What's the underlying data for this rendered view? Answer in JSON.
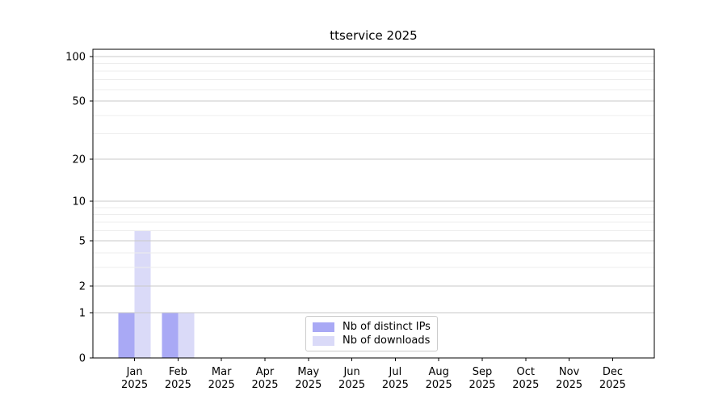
{
  "chart_data": {
    "type": "bar",
    "title": "ttservice 2025",
    "categories": [
      "Jan 2025",
      "Feb 2025",
      "Mar 2025",
      "Apr 2025",
      "May 2025",
      "Jun 2025",
      "Jul 2025",
      "Aug 2025",
      "Sep 2025",
      "Oct 2025",
      "Nov 2025",
      "Dec 2025"
    ],
    "series": [
      {
        "key": "distinct-ips",
        "name": "Nb of distinct IPs",
        "color": "#a9a9f5",
        "values": [
          1,
          1,
          0,
          0,
          0,
          0,
          0,
          0,
          0,
          0,
          0,
          0
        ]
      },
      {
        "key": "downloads",
        "name": "Nb of downloads",
        "color": "#dadaf8",
        "values": [
          6,
          1,
          0,
          0,
          0,
          0,
          0,
          0,
          0,
          0,
          0,
          0
        ]
      }
    ],
    "xlabel": "",
    "ylabel": "",
    "yscale": "log1p",
    "ylim": [
      0,
      112
    ],
    "yticks": [
      0,
      1,
      2,
      5,
      10,
      20,
      50,
      100
    ],
    "minor_gridlines": [
      3,
      4,
      6,
      7,
      8,
      9,
      30,
      40,
      60,
      70,
      80,
      90
    ],
    "grid": "horizontal",
    "legend_position": "inside-bottom-center",
    "colors": {
      "axis_text": "#000000",
      "spine": "#000000",
      "grid_major": "#c9c9c9",
      "grid_minor": "#ededed",
      "background": "#ffffff"
    }
  }
}
